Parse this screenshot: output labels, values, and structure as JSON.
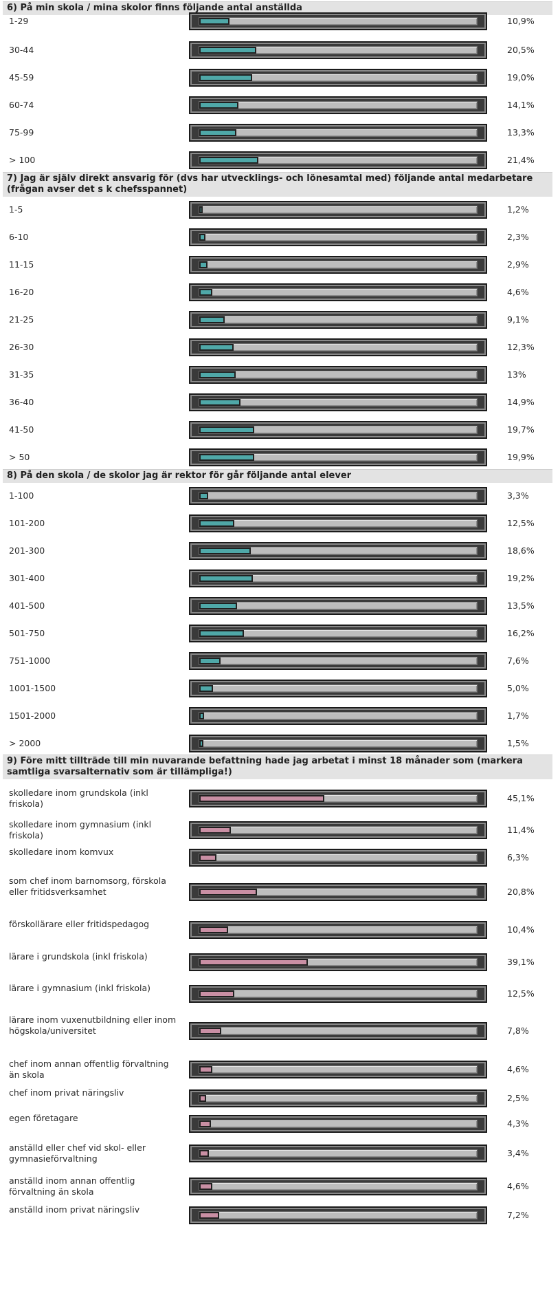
{
  "colors": {
    "teal_fill": "#4fa8a8",
    "pink_fill": "#c98fa4",
    "header_bg": "#e3e3e3"
  },
  "chart_data": [
    {
      "type": "bar",
      "orientation": "horizontal",
      "title": "6) På min skola / mina skolor finns följande antal anställda",
      "categories": [
        "1-29",
        "30-44",
        "45-59",
        "60-74",
        "75-99",
        "> 100"
      ],
      "labels": [
        "10,9%",
        "20,5%",
        "19,0%",
        "14,1%",
        "13,3%",
        "21,4%"
      ],
      "values": [
        10.9,
        20.5,
        19.0,
        14.1,
        13.3,
        21.4
      ],
      "color": "#4fa8a8",
      "xlim": [
        0,
        100
      ]
    },
    {
      "type": "bar",
      "orientation": "horizontal",
      "title": "7) Jag är själv direkt ansvarig för (dvs har utvecklings- och lönesamtal med) följande antal medarbetare (frågan avser det s k chefsspannet)",
      "categories": [
        "1-5",
        "6-10",
        "11-15",
        "16-20",
        "21-25",
        "26-30",
        "31-35",
        "36-40",
        "41-50",
        "> 50"
      ],
      "labels": [
        "1,2%",
        "2,3%",
        "2,9%",
        "4,6%",
        "9,1%",
        "12,3%",
        "13%",
        "14,9%",
        "19,7%",
        "19,9%"
      ],
      "values": [
        1.2,
        2.3,
        2.9,
        4.6,
        9.1,
        12.3,
        13,
        14.9,
        19.7,
        19.9
      ],
      "color": "#4fa8a8",
      "xlim": [
        0,
        100
      ]
    },
    {
      "type": "bar",
      "orientation": "horizontal",
      "title": "8) På den skola / de skolor jag är rektor för går följande antal elever",
      "categories": [
        "1-100",
        "101-200",
        "201-300",
        "301-400",
        "401-500",
        "501-750",
        "751-1000",
        "1001-1500",
        "1501-2000",
        "> 2000"
      ],
      "labels": [
        "3,3%",
        "12,5%",
        "18,6%",
        "19,2%",
        "13,5%",
        "16,2%",
        "7,6%",
        "5,0%",
        "1,7%",
        "1,5%"
      ],
      "values": [
        3.3,
        12.5,
        18.6,
        19.2,
        13.5,
        16.2,
        7.6,
        5.0,
        1.7,
        1.5
      ],
      "color": "#4fa8a8",
      "xlim": [
        0,
        100
      ]
    },
    {
      "type": "bar",
      "orientation": "horizontal",
      "title": "9) Före mitt tillträde till min nuvarande befattning hade jag arbetat i minst 18 månader som (markera samtliga svarsalternativ som är tillämpliga!)",
      "categories": [
        "skolledare inom grundskola (inkl friskola)",
        "skolledare inom gymnasium (inkl friskola)",
        "skolledare inom komvux",
        "som chef inom barnomsorg, förskola eller fritidsverksamhet",
        "förskollärare eller fritidspedagog",
        "lärare i grundskola (inkl friskola)",
        "lärare i gymnasium (inkl friskola)",
        "lärare inom vuxenutbildning eller inom högskola/universitet",
        "chef inom annan offentlig förvaltning än skola",
        "chef inom privat näringsliv",
        "egen företagare",
        "anställd eller chef vid skol- eller gymnasieförvaltning",
        "anställd inom annan offentlig förvaltning än skola",
        "anställd inom privat näringsliv"
      ],
      "labels": [
        "45,1%",
        "11,4%",
        "6,3%",
        "20,8%",
        "10,4%",
        "39,1%",
        "12,5%",
        "7,8%",
        "4,6%",
        "2,5%",
        "4,3%",
        "3,4%",
        "4,6%",
        "7,2%"
      ],
      "values": [
        45.1,
        11.4,
        6.3,
        20.8,
        10.4,
        39.1,
        12.5,
        7.8,
        4.6,
        2.5,
        4.3,
        3.4,
        4.6,
        7.2
      ],
      "color": "#c98fa4",
      "xlim": [
        0,
        100
      ]
    }
  ]
}
